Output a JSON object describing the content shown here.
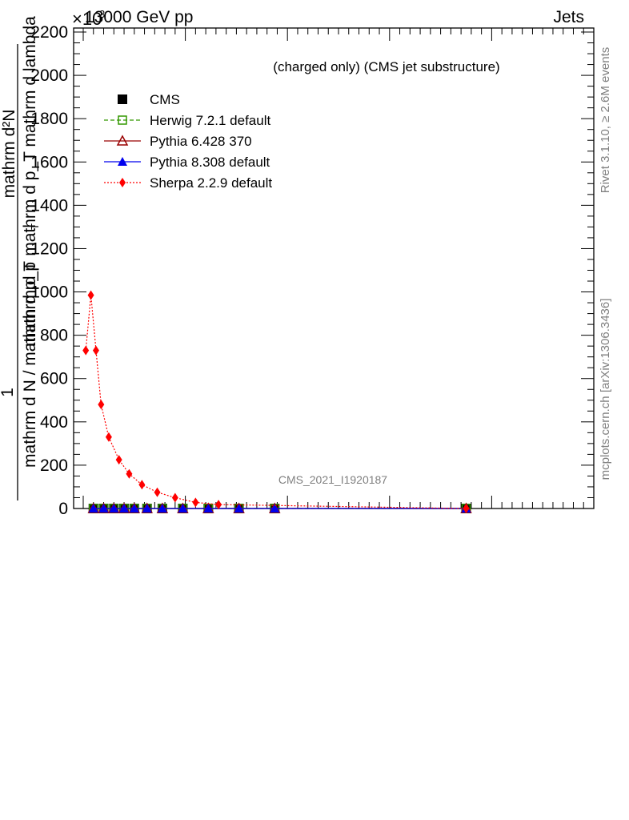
{
  "header": {
    "left": "13000 GeV pp",
    "right": "Jets",
    "exponent": "×10",
    "exponent_power": "3"
  },
  "side": {
    "rivet": "Rivet 3.1.10, ≥ 2.6M events",
    "mcplots": "mcplots.cern.ch [arXiv:1306.3436]"
  },
  "chart_data": {
    "type": "line",
    "title": "(charged only) (CMS jet substructure)",
    "analysis": "CMS_2021_I1920187",
    "ylabel_top": "mathrm d²N",
    "ylabel_middle": "mathrm d p_T mathrm d lambda",
    "ylabel_subscript": "T",
    "ylabel_numerator": "1",
    "ylabel_denominator": "mathrm d N / mathrm d p_T",
    "ylabel_front": "mathrm d p",
    "ylim": [
      0,
      2200
    ],
    "xlim": [
      0,
      1
    ],
    "yticks": [
      "0",
      "200",
      "400",
      "600",
      "800",
      "1000",
      "1200",
      "1400",
      "1600",
      "1800",
      "2000",
      "2200"
    ],
    "legend_position": "top-left",
    "series": [
      {
        "name": "CMS",
        "color": "#000000",
        "marker": "square",
        "x": [
          0.02,
          0.04,
          0.06,
          0.08,
          0.1,
          0.125,
          0.155,
          0.195,
          0.245,
          0.305,
          0.375,
          0.75
        ],
        "y": [
          0,
          0,
          0,
          0,
          0,
          0,
          0,
          0,
          0,
          0,
          0,
          0
        ]
      },
      {
        "name": "Herwig 7.2.1 default",
        "color": "#339900",
        "marker": "open-square",
        "dash": "dashed",
        "x": [
          0.02,
          0.04,
          0.06,
          0.08,
          0.1,
          0.125,
          0.155,
          0.195,
          0.245,
          0.305,
          0.375,
          0.75
        ],
        "y": [
          0,
          0,
          0,
          0,
          0,
          0,
          0,
          0,
          0,
          0,
          0,
          0
        ]
      },
      {
        "name": "Pythia 6.428 370",
        "color": "#990000",
        "marker": "open-triangle",
        "dash": "solid",
        "x": [
          0.02,
          0.04,
          0.06,
          0.08,
          0.1,
          0.125,
          0.155,
          0.195,
          0.245,
          0.305,
          0.375,
          0.75
        ],
        "y": [
          0,
          0,
          0,
          0,
          0,
          0,
          0,
          0,
          0,
          0,
          0,
          0
        ]
      },
      {
        "name": "Pythia 8.308 default",
        "color": "#0000ee",
        "marker": "triangle",
        "dash": "solid",
        "x": [
          0.02,
          0.04,
          0.06,
          0.08,
          0.1,
          0.125,
          0.155,
          0.195,
          0.245,
          0.305,
          0.375,
          0.75
        ],
        "y": [
          0,
          0,
          0,
          0,
          0,
          0,
          0,
          0,
          0,
          0,
          0,
          0
        ]
      },
      {
        "name": "Sherpa 2.2.9 default",
        "color": "#ff0000",
        "marker": "diamond",
        "dash": "dotted",
        "x": [
          0.005,
          0.015,
          0.025,
          0.035,
          0.05,
          0.07,
          0.09,
          0.115,
          0.145,
          0.18,
          0.22,
          0.265,
          0.75
        ],
        "y": [
          730,
          985,
          730,
          480,
          330,
          225,
          160,
          110,
          75,
          50,
          28,
          18,
          0
        ]
      }
    ]
  }
}
